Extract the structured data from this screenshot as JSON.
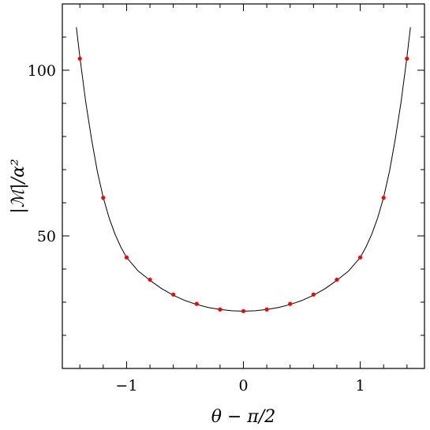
{
  "chart_data": {
    "type": "line",
    "title": "",
    "xlabel": "θ − π/2",
    "ylabel": "|ℳ|/α²",
    "xlim": [
      -1.55,
      1.55
    ],
    "ylim": [
      10,
      120
    ],
    "grid": false,
    "legend": "none",
    "x_ticks": [
      {
        "value": -1,
        "label": "−1"
      },
      {
        "value": 0,
        "label": "0"
      },
      {
        "value": 1,
        "label": "1"
      }
    ],
    "y_ticks": [
      {
        "value": 50,
        "label": "50"
      },
      {
        "value": 100,
        "label": "100"
      }
    ],
    "series": [
      {
        "type": "line",
        "color": "#000000",
        "x": [
          -1.43,
          -1.4,
          -1.35,
          -1.3,
          -1.25,
          -1.2,
          -1.15,
          -1.1,
          -1.05,
          -1.0,
          -0.9,
          -0.8,
          -0.7,
          -0.6,
          -0.5,
          -0.4,
          -0.3,
          -0.2,
          -0.1,
          0.0,
          0.1,
          0.2,
          0.3,
          0.4,
          0.5,
          0.6,
          0.7,
          0.8,
          0.9,
          1.0,
          1.05,
          1.1,
          1.15,
          1.2,
          1.25,
          1.3,
          1.35,
          1.4,
          1.43
        ],
        "y": [
          113.0,
          104.0,
          90.5,
          79.2,
          69.4,
          61.6,
          55.5,
          50.6,
          46.7,
          43.5,
          39.4,
          36.6,
          34.1,
          32.1,
          30.5,
          29.3,
          28.4,
          27.8,
          27.4,
          27.3,
          27.4,
          27.8,
          28.4,
          29.3,
          30.5,
          32.1,
          34.1,
          36.6,
          39.4,
          43.5,
          46.7,
          50.6,
          55.5,
          61.6,
          69.4,
          79.2,
          90.5,
          104.0,
          113.0
        ]
      },
      {
        "type": "scatter",
        "color": "#ff0000",
        "x": [
          -1.4,
          -1.2,
          -1.0,
          -0.8,
          -0.6,
          -0.4,
          -0.2,
          0.0,
          0.2,
          0.4,
          0.6,
          0.8,
          1.0,
          1.2,
          1.4
        ],
        "y": [
          103.5,
          61.5,
          43.5,
          36.8,
          32.3,
          29.5,
          27.8,
          27.3,
          27.8,
          29.5,
          32.3,
          36.8,
          43.5,
          61.5,
          103.5
        ]
      }
    ]
  }
}
